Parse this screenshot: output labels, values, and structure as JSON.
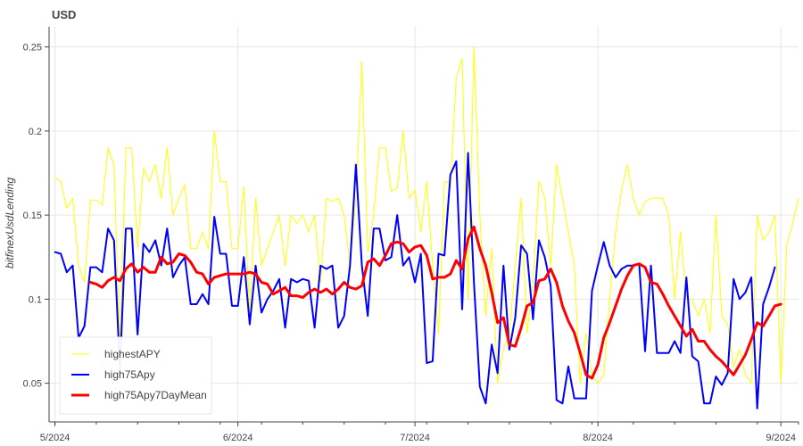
{
  "chart_data": {
    "type": "line",
    "title": "USD",
    "xlabel": "",
    "ylabel": "bitfinexUsdLending",
    "x_start": "2024-05-01",
    "xlim": [
      "2024-04-30",
      "2024-09-04"
    ],
    "ylim": [
      0.027,
      0.262
    ],
    "y_ticks": [
      0.05,
      0.1,
      0.15,
      0.2,
      0.25
    ],
    "y_tick_labels": [
      "0.05",
      "0.1",
      "0.15",
      "0.2",
      "0.25"
    ],
    "x_ticks": [
      "2024-05-01",
      "2024-06-01",
      "2024-07-01",
      "2024-08-01",
      "2024-09-01"
    ],
    "x_tick_labels": [
      "5/2024",
      "6/2024",
      "7/2024",
      "8/2024",
      "9/2024"
    ],
    "grid": true,
    "legend_position": "bottom-left",
    "series": [
      {
        "name": "highestAPY",
        "color": "#ffff00",
        "width": 1,
        "values": [
          0.172,
          0.17,
          0.154,
          0.16,
          0.12,
          0.11,
          0.159,
          0.159,
          0.156,
          0.19,
          0.18,
          0.07,
          0.19,
          0.19,
          0.13,
          0.178,
          0.17,
          0.18,
          0.16,
          0.19,
          0.15,
          0.16,
          0.168,
          0.13,
          0.13,
          0.14,
          0.13,
          0.2,
          0.17,
          0.17,
          0.13,
          0.13,
          0.167,
          0.09,
          0.16,
          0.12,
          0.13,
          0.14,
          0.15,
          0.12,
          0.15,
          0.145,
          0.15,
          0.14,
          0.15,
          0.11,
          0.16,
          0.158,
          0.16,
          0.15,
          0.12,
          0.16,
          0.241,
          0.128,
          0.15,
          0.19,
          0.19,
          0.164,
          0.166,
          0.2,
          0.16,
          0.165,
          0.14,
          0.17,
          0.12,
          0.08,
          0.17,
          0.169,
          0.232,
          0.243,
          0.1,
          0.25,
          0.15,
          0.09,
          0.13,
          0.05,
          0.07,
          0.08,
          0.12,
          0.16,
          0.08,
          0.11,
          0.17,
          0.16,
          0.12,
          0.18,
          0.16,
          0.14,
          0.12,
          0.05,
          0.08,
          0.055,
          0.05,
          0.055,
          0.1,
          0.14,
          0.165,
          0.18,
          0.16,
          0.15,
          0.158,
          0.16,
          0.16,
          0.16,
          0.15,
          0.1,
          0.14,
          0.1,
          0.1,
          0.09,
          0.1,
          0.08,
          0.15,
          0.09,
          0.085,
          0.06,
          0.07,
          0.055,
          0.05,
          0.15,
          0.135,
          0.14,
          0.15,
          0.05,
          0.132,
          0.145,
          0.16
        ]
      },
      {
        "name": "high75Apy",
        "color": "#0000ff",
        "width": 2,
        "values": [
          0.128,
          0.127,
          0.116,
          0.12,
          0.077,
          0.084,
          0.119,
          0.119,
          0.116,
          0.142,
          0.135,
          0.058,
          0.142,
          0.142,
          0.079,
          0.133,
          0.128,
          0.135,
          0.12,
          0.142,
          0.113,
          0.12,
          0.125,
          0.097,
          0.097,
          0.103,
          0.097,
          0.149,
          0.127,
          0.127,
          0.096,
          0.096,
          0.125,
          0.085,
          0.12,
          0.092,
          0.1,
          0.105,
          0.112,
          0.083,
          0.112,
          0.11,
          0.112,
          0.111,
          0.083,
          0.12,
          0.118,
          0.12,
          0.083,
          0.09,
          0.12,
          0.18,
          0.12,
          0.09,
          0.142,
          0.142,
          0.123,
          0.125,
          0.15,
          0.12,
          0.125,
          0.11,
          0.127,
          0.062,
          0.063,
          0.127,
          0.126,
          0.174,
          0.182,
          0.094,
          0.187,
          0.11,
          0.048,
          0.038,
          0.073,
          0.056,
          0.12,
          0.07,
          0.089,
          0.132,
          0.127,
          0.088,
          0.135,
          0.125,
          0.108,
          0.04,
          0.038,
          0.06,
          0.041,
          0.041,
          0.041,
          0.105,
          0.12,
          0.134,
          0.12,
          0.113,
          0.118,
          0.12,
          0.12,
          0.121,
          0.069,
          0.12,
          0.068,
          0.068,
          0.068,
          0.075,
          0.068,
          0.113,
          0.066,
          0.063,
          0.038,
          0.038,
          0.054,
          0.049,
          0.056,
          0.112,
          0.1,
          0.104,
          0.113,
          0.035,
          0.097,
          0.107,
          0.119
        ]
      },
      {
        "name": "high75Apy7DayMean",
        "color": "#ff0000",
        "width": 3,
        "start_index": 6,
        "values": [
          0.11,
          0.109,
          0.107,
          0.111,
          0.113,
          0.111,
          0.118,
          0.121,
          0.116,
          0.119,
          0.116,
          0.116,
          0.125,
          0.121,
          0.122,
          0.127,
          0.126,
          0.122,
          0.116,
          0.115,
          0.109,
          0.113,
          0.114,
          0.115,
          0.115,
          0.115,
          0.115,
          0.116,
          0.115,
          0.11,
          0.109,
          0.103,
          0.105,
          0.107,
          0.102,
          0.102,
          0.101,
          0.104,
          0.106,
          0.104,
          0.106,
          0.103,
          0.106,
          0.11,
          0.107,
          0.106,
          0.108,
          0.122,
          0.124,
          0.12,
          0.126,
          0.133,
          0.134,
          0.133,
          0.128,
          0.131,
          0.132,
          0.126,
          0.112,
          0.113,
          0.113,
          0.115,
          0.123,
          0.118,
          0.136,
          0.143,
          0.13,
          0.12,
          0.104,
          0.086,
          0.089,
          0.073,
          0.072,
          0.083,
          0.096,
          0.098,
          0.111,
          0.112,
          0.118,
          0.11,
          0.096,
          0.087,
          0.08,
          0.068,
          0.055,
          0.053,
          0.061,
          0.077,
          0.086,
          0.096,
          0.106,
          0.114,
          0.12,
          0.121,
          0.119,
          0.11,
          0.109,
          0.103,
          0.096,
          0.09,
          0.084,
          0.078,
          0.082,
          0.075,
          0.075,
          0.07,
          0.066,
          0.063,
          0.059,
          0.055,
          0.061,
          0.067,
          0.076,
          0.086,
          0.084,
          0.09,
          0.096,
          0.097
        ]
      }
    ]
  }
}
